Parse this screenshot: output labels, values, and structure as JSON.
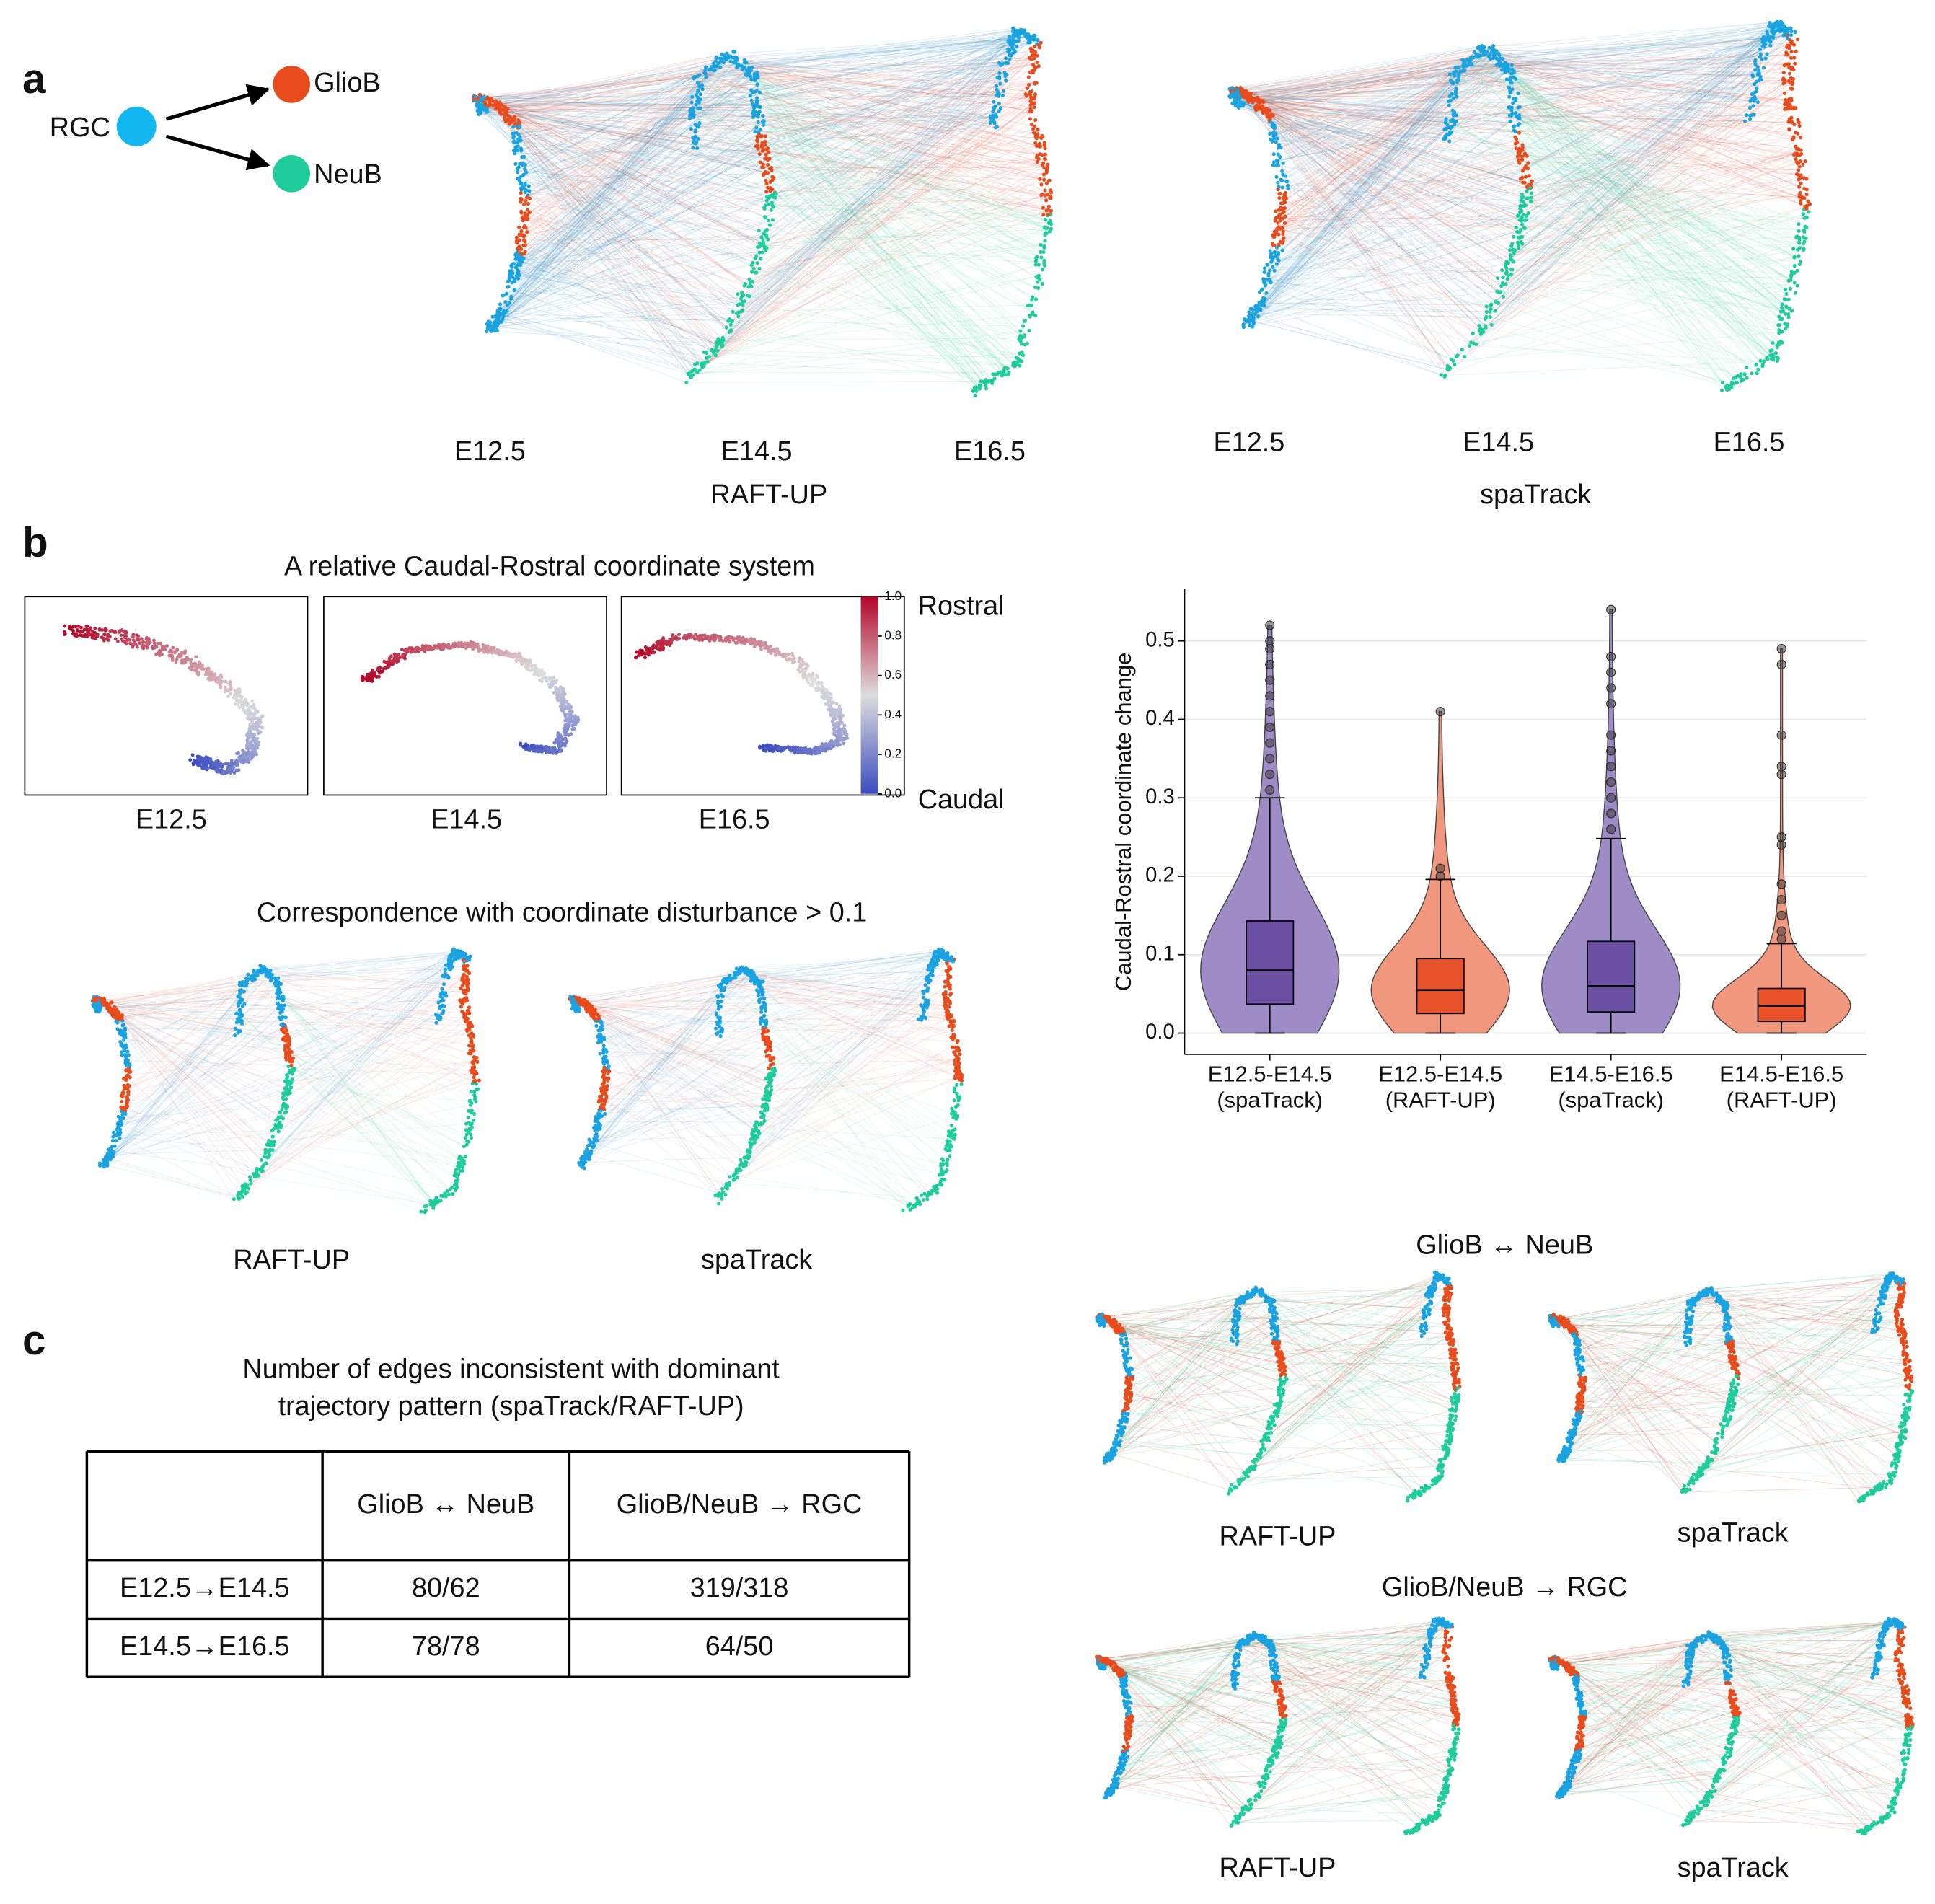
{
  "panel_labels": [
    "a",
    "b",
    "c"
  ],
  "lineage": {
    "nodes": [
      "RGC",
      "GlioB",
      "NeuB"
    ]
  },
  "panel_a": {
    "plots": [
      {
        "times": [
          "E12.5",
          "E14.5",
          "E16.5"
        ],
        "method": "RAFT-UP"
      },
      {
        "times": [
          "E12.5",
          "E14.5",
          "E16.5"
        ],
        "method": "spaTrack"
      }
    ]
  },
  "panel_b": {
    "title": "A relative Caudal-Rostral coordinate system",
    "times": [
      "E12.5",
      "E14.5",
      "E16.5"
    ],
    "colorbar": {
      "ticks": [
        {
          "value": 0,
          "label": "0.0"
        },
        0.2,
        0.4,
        0.6,
        0.8,
        {
          "value": 1,
          "label": "1.0"
        }
      ],
      "top_label": "Rostral",
      "bottom_label": "Caudal"
    },
    "disturbance_title": "Correspondence with coordinate disturbance > 0.1",
    "disturbance_methods": [
      "RAFT-UP",
      "spaTrack"
    ]
  },
  "chart_data": {
    "type": "violin",
    "ylabel": "Caudal-Rostral coordinate change",
    "categories": [
      [
        "E12.5-E14.5",
        "(spaTrack)"
      ],
      [
        "E12.5-E14.5",
        "(RAFT-UP)"
      ],
      [
        "E14.5-E16.5",
        "(spaTrack)"
      ],
      [
        "E14.5-E16.5",
        "(RAFT-UP)"
      ]
    ],
    "ylim": [
      -0.027,
      0.566
    ],
    "yticks": [
      {
        "value": 0,
        "label": "0.0"
      },
      0.1,
      0.2,
      0.3,
      0.4,
      0.5
    ],
    "grid": true,
    "boxes": [
      {
        "whislo": 0,
        "q1": 0.037,
        "med": 0.08,
        "q3": 0.143,
        "whishi": 0.3,
        "color": "#6a4fa3",
        "violin_color": "#9d8cc6",
        "outliers": [
          0.31,
          0.33,
          0.35,
          0.37,
          0.39,
          0.41,
          0.43,
          0.45,
          0.47,
          0.49,
          0.5,
          0.52
        ]
      },
      {
        "whislo": 0,
        "q1": 0.025,
        "med": 0.055,
        "q3": 0.095,
        "whishi": 0.196,
        "color": "#e8532b",
        "violin_color": "#f0977d",
        "outliers": [
          0.2,
          0.21,
          0.41
        ]
      },
      {
        "whislo": 0,
        "q1": 0.027,
        "med": 0.06,
        "q3": 0.117,
        "whishi": 0.248,
        "color": "#6a4fa3",
        "violin_color": "#9d8cc6",
        "outliers": [
          0.26,
          0.28,
          0.3,
          0.32,
          0.34,
          0.36,
          0.38,
          0.42,
          0.44,
          0.46,
          0.48,
          0.54
        ]
      },
      {
        "whislo": 0,
        "q1": 0.015,
        "med": 0.035,
        "q3": 0.057,
        "whishi": 0.114,
        "color": "#e8532b",
        "violin_color": "#f0977d",
        "outliers": [
          0.12,
          0.13,
          0.15,
          0.17,
          0.19,
          0.24,
          0.25,
          0.33,
          0.34,
          0.38,
          0.47,
          0.49
        ]
      }
    ]
  },
  "panel_c": {
    "title": [
      "Number of edges inconsistent with dominant",
      "trajectory pattern (spaTrack/RAFT-UP)"
    ],
    "table": {
      "columns": [
        "GlioB ↔ NeuB",
        "GlioB/NeuB → RGC"
      ],
      "rows": [
        [
          "E12.5→E14.5",
          "80/62",
          "319/318"
        ],
        [
          "E14.5→E16.5",
          "78/78",
          "64/50"
        ]
      ]
    }
  },
  "panel_d": {
    "sections": [
      {
        "title": "GlioB ↔ NeuB",
        "methods": [
          "RAFT-UP",
          "spaTrack"
        ]
      },
      {
        "title": "GlioB/NeuB → RGC",
        "methods": [
          "RAFT-UP",
          "spaTrack"
        ]
      }
    ]
  }
}
